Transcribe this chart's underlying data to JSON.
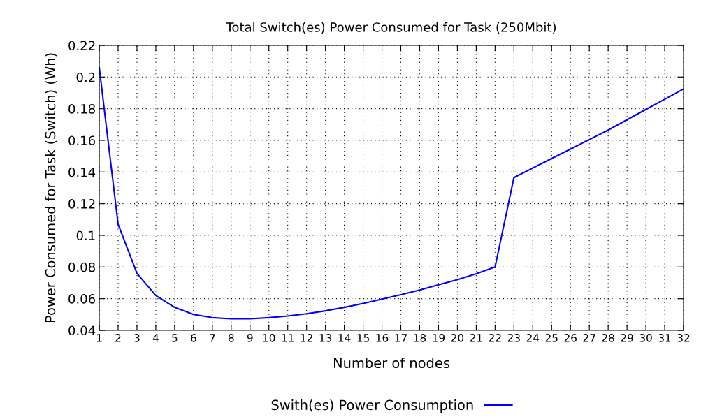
{
  "chart_data": {
    "type": "line",
    "title": "Total Switch(es) Power Consumed for Task (250Mbit)",
    "xlabel": "Number of nodes",
    "ylabel": "Power Consumed for Task (Switch) (Wh)",
    "x": [
      1,
      2,
      3,
      4,
      5,
      6,
      7,
      8,
      9,
      10,
      11,
      12,
      13,
      14,
      15,
      16,
      17,
      18,
      19,
      20,
      21,
      22,
      23,
      24,
      25,
      26,
      27,
      28,
      29,
      30,
      31,
      32
    ],
    "series": [
      {
        "name": "Swith(es) Power Consumption",
        "color": "#0000ff",
        "values": [
          0.206,
          0.107,
          0.076,
          0.062,
          0.0545,
          0.05,
          0.048,
          0.0473,
          0.0473,
          0.048,
          0.049,
          0.0505,
          0.0523,
          0.0545,
          0.057,
          0.0597,
          0.0625,
          0.0655,
          0.0688,
          0.072,
          0.0757,
          0.08,
          0.1365,
          0.1425,
          0.1485,
          0.1545,
          0.1605,
          0.1665,
          0.173,
          0.1795,
          0.186,
          0.1925
        ]
      }
    ],
    "xlim": [
      1,
      32
    ],
    "xticks": [
      1,
      2,
      3,
      4,
      5,
      6,
      7,
      8,
      9,
      10,
      11,
      12,
      13,
      14,
      15,
      16,
      17,
      18,
      19,
      20,
      21,
      22,
      23,
      24,
      25,
      26,
      27,
      28,
      29,
      30,
      31,
      32
    ],
    "ylim": [
      0.04,
      0.22
    ],
    "yticks": [
      {
        "value": 0.04,
        "label": "0.04"
      },
      {
        "value": 0.06,
        "label": "0.06"
      },
      {
        "value": 0.08,
        "label": "0.08"
      },
      {
        "value": 0.1,
        "label": "0.1"
      },
      {
        "value": 0.12,
        "label": "0.12"
      },
      {
        "value": 0.14,
        "label": "0.14"
      },
      {
        "value": 0.16,
        "label": "0.16"
      },
      {
        "value": 0.18,
        "label": "0.18"
      },
      {
        "value": 0.2,
        "label": "0.2"
      },
      {
        "value": 0.22,
        "label": "0.22"
      }
    ],
    "grid": true,
    "legend": "bottom",
    "marker": "none",
    "line_style": "solid"
  }
}
